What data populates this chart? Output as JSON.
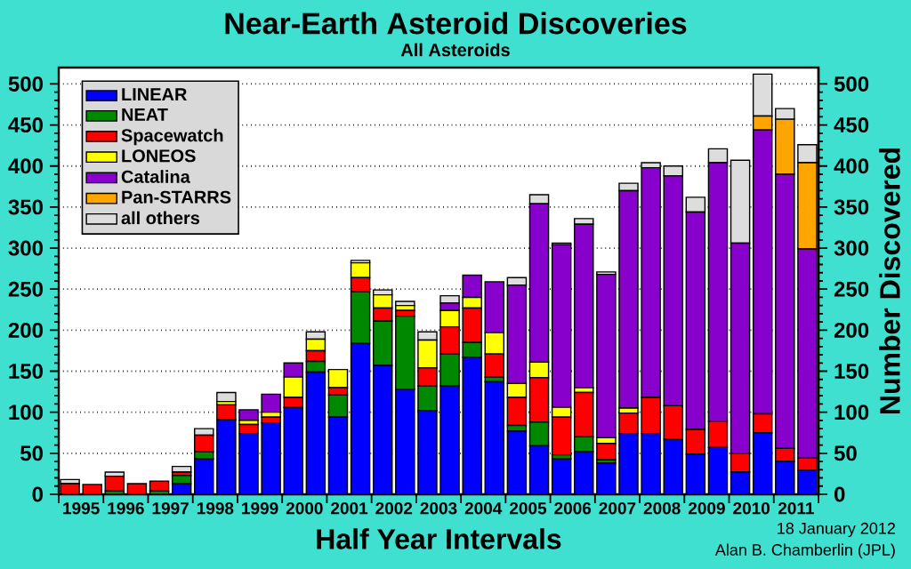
{
  "chart_data": {
    "type": "bar",
    "stacked": true,
    "title": "Near-Earth Asteroid Discoveries",
    "subtitle": "All Asteroids",
    "xlabel": "Half Year Intervals",
    "y2label": "Number Discovered",
    "annotations": [
      "18 January 2012",
      "Alan B. Chamberlin (JPL)"
    ],
    "x": [
      1995.25,
      1995.75,
      1996.25,
      1996.75,
      1997.25,
      1997.75,
      1998.25,
      1998.75,
      1999.25,
      1999.75,
      2000.25,
      2000.75,
      2001.25,
      2001.75,
      2002.25,
      2002.75,
      2003.25,
      2003.75,
      2004.25,
      2004.75,
      2005.25,
      2005.75,
      2006.25,
      2006.75,
      2007.25,
      2007.75,
      2008.25,
      2008.75,
      2009.25,
      2009.75,
      2010.25,
      2010.75,
      2011.25,
      2011.75
    ],
    "xlim": [
      1995,
      2012
    ],
    "xticks": [
      {
        "value": 1995,
        "label": null
      },
      {
        "value": 1995.5,
        "label": "1995"
      },
      {
        "value": 1996,
        "label": null
      },
      {
        "value": 1996.5,
        "label": "1996"
      },
      {
        "value": 1997,
        "label": null
      },
      {
        "value": 1997.5,
        "label": "1997"
      },
      {
        "value": 1998,
        "label": null
      },
      {
        "value": 1998.5,
        "label": "1998"
      },
      {
        "value": 1999,
        "label": null
      },
      {
        "value": 1999.5,
        "label": "1999"
      },
      {
        "value": 2000,
        "label": null
      },
      {
        "value": 2000.5,
        "label": "2000"
      },
      {
        "value": 2001,
        "label": null
      },
      {
        "value": 2001.5,
        "label": "2001"
      },
      {
        "value": 2002,
        "label": null
      },
      {
        "value": 2002.5,
        "label": "2002"
      },
      {
        "value": 2003,
        "label": null
      },
      {
        "value": 2003.5,
        "label": "2003"
      },
      {
        "value": 2004,
        "label": null
      },
      {
        "value": 2004.5,
        "label": "2004"
      },
      {
        "value": 2005,
        "label": null
      },
      {
        "value": 2005.5,
        "label": "2005"
      },
      {
        "value": 2006,
        "label": null
      },
      {
        "value": 2006.5,
        "label": "2006"
      },
      {
        "value": 2007,
        "label": null
      },
      {
        "value": 2007.5,
        "label": "2007"
      },
      {
        "value": 2008,
        "label": null
      },
      {
        "value": 2008.5,
        "label": "2008"
      },
      {
        "value": 2009,
        "label": null
      },
      {
        "value": 2009.5,
        "label": "2009"
      },
      {
        "value": 2010,
        "label": null
      },
      {
        "value": 2010.5,
        "label": "2010"
      },
      {
        "value": 2011,
        "label": null
      },
      {
        "value": 2011.5,
        "label": "2011"
      },
      {
        "value": 2012,
        "label": null
      }
    ],
    "ylim": [
      0,
      520
    ],
    "yticks": [
      0,
      50,
      100,
      150,
      200,
      250,
      300,
      350,
      400,
      450,
      500
    ],
    "y2lim": [
      0,
      520
    ],
    "y2ticks": [
      0,
      50,
      100,
      150,
      200,
      250,
      300,
      350,
      400,
      450,
      500
    ],
    "grid": "y",
    "legend": "top left",
    "series": [
      {
        "name": "LINEAR",
        "color": "#0000ff",
        "values": [
          0,
          0,
          0,
          0,
          0,
          13,
          43,
          91,
          74,
          87,
          106,
          149,
          94,
          184,
          157,
          128,
          102,
          132,
          167,
          137,
          77,
          59,
          43,
          52,
          38,
          74,
          74,
          67,
          49,
          57,
          27,
          75,
          40,
          29
        ]
      },
      {
        "name": "NEAT",
        "color": "#008800",
        "values": [
          0,
          0,
          4,
          0,
          4,
          10,
          9,
          0,
          0,
          0,
          0,
          13,
          27,
          63,
          54,
          89,
          30,
          39,
          18,
          6,
          7,
          29,
          5,
          18,
          4,
          0,
          0,
          0,
          0,
          0,
          0,
          0,
          0,
          0
        ]
      },
      {
        "name": "Spacewatch",
        "color": "#ff0000",
        "values": [
          13,
          12,
          18,
          13,
          12,
          4,
          20,
          18,
          11,
          7,
          12,
          13,
          9,
          17,
          16,
          7,
          22,
          33,
          42,
          28,
          34,
          54,
          46,
          54,
          20,
          25,
          44,
          41,
          30,
          32,
          23,
          23,
          16,
          15
        ]
      },
      {
        "name": "LONEOS",
        "color": "#ffff00",
        "values": [
          0,
          0,
          0,
          0,
          0,
          0,
          0,
          4,
          5,
          6,
          25,
          14,
          22,
          18,
          16,
          6,
          34,
          20,
          13,
          26,
          17,
          19,
          12,
          6,
          7,
          6,
          0,
          0,
          0,
          0,
          0,
          0,
          0,
          0
        ]
      },
      {
        "name": "Catalina",
        "color": "#8800cc",
        "values": [
          0,
          0,
          0,
          0,
          0,
          0,
          0,
          0,
          13,
          22,
          17,
          0,
          0,
          0,
          0,
          0,
          0,
          9,
          27,
          62,
          120,
          193,
          198,
          199,
          199,
          265,
          280,
          280,
          265,
          315,
          256,
          346,
          334,
          255
        ]
      },
      {
        "name": "Pan-STARRS",
        "color": "#ffa500",
        "values": [
          0,
          0,
          0,
          0,
          0,
          0,
          0,
          0,
          0,
          0,
          0,
          0,
          0,
          0,
          0,
          0,
          0,
          0,
          0,
          0,
          0,
          0,
          0,
          0,
          0,
          0,
          0,
          0,
          0,
          0,
          0,
          17,
          67,
          105
        ]
      },
      {
        "name": "all others",
        "color": "#dddddd",
        "values": [
          5,
          0,
          5,
          0,
          0,
          7,
          8,
          11,
          0,
          0,
          0,
          9,
          0,
          3,
          6,
          5,
          10,
          9,
          0,
          0,
          9,
          11,
          2,
          7,
          3,
          9,
          6,
          12,
          18,
          17,
          101,
          51,
          13,
          22
        ]
      }
    ]
  }
}
